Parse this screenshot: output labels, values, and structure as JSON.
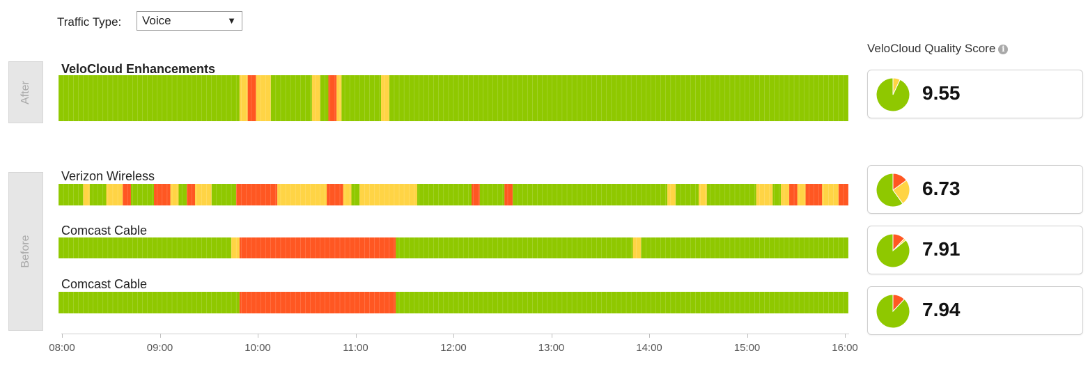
{
  "colors": {
    "good": "#8fc800",
    "fair": "#ffd445",
    "poor": "#ff5722",
    "separator": "#ffffff"
  },
  "toolbar": {
    "traffic_label": "Traffic Type:",
    "traffic_value": "Voice",
    "dropdown_icon": "triangle-down-icon"
  },
  "side_labels": {
    "after": "After",
    "before": "Before"
  },
  "score_header": {
    "label": "VeloCloud Quality Score",
    "icon": "info-icon"
  },
  "time_axis": {
    "start": "08:00",
    "end": "16:00",
    "ticks": [
      "08:00",
      "09:00",
      "10:00",
      "11:00",
      "12:00",
      "13:00",
      "14:00",
      "15:00",
      "16:00"
    ]
  },
  "rows": [
    {
      "name": "VeloCloud Enhancements",
      "group": "After",
      "score": "9.55",
      "pie": {
        "good": 0.93,
        "fair": 0.07,
        "poor": 0.0
      },
      "segments": [
        [
          "08:00",
          "09:50",
          "good"
        ],
        [
          "09:50",
          "09:55",
          "fair"
        ],
        [
          "09:55",
          "10:00",
          "poor"
        ],
        [
          "10:00",
          "10:09",
          "fair"
        ],
        [
          "10:09",
          "10:34",
          "good"
        ],
        [
          "10:34",
          "10:39",
          "fair"
        ],
        [
          "10:39",
          "10:44",
          "good"
        ],
        [
          "10:44",
          "10:49",
          "poor"
        ],
        [
          "10:49",
          "10:52",
          "fair"
        ],
        [
          "10:52",
          "11:16",
          "good"
        ],
        [
          "11:16",
          "11:21",
          "fair"
        ],
        [
          "11:21",
          "16:00",
          "good"
        ]
      ]
    },
    {
      "name": "Verizon Wireless",
      "group": "Before",
      "score": "6.73",
      "pie": {
        "good": 0.6,
        "fair": 0.25,
        "poor": 0.15
      },
      "segments": [
        [
          "08:00",
          "08:15",
          "good"
        ],
        [
          "08:15",
          "08:19",
          "fair"
        ],
        [
          "08:19",
          "08:29",
          "good"
        ],
        [
          "08:29",
          "08:39",
          "fair"
        ],
        [
          "08:39",
          "08:44",
          "poor"
        ],
        [
          "08:44",
          "08:58",
          "good"
        ],
        [
          "08:58",
          "09:08",
          "poor"
        ],
        [
          "09:08",
          "09:13",
          "fair"
        ],
        [
          "09:13",
          "09:18",
          "good"
        ],
        [
          "09:18",
          "09:23",
          "poor"
        ],
        [
          "09:23",
          "09:33",
          "fair"
        ],
        [
          "09:33",
          "09:48",
          "good"
        ],
        [
          "09:48",
          "10:13",
          "poor"
        ],
        [
          "10:13",
          "10:43",
          "fair"
        ],
        [
          "10:43",
          "10:53",
          "poor"
        ],
        [
          "10:53",
          "10:58",
          "fair"
        ],
        [
          "10:58",
          "11:03",
          "good"
        ],
        [
          "11:03",
          "11:38",
          "fair"
        ],
        [
          "11:38",
          "12:11",
          "good"
        ],
        [
          "12:11",
          "12:16",
          "poor"
        ],
        [
          "12:16",
          "12:31",
          "good"
        ],
        [
          "12:31",
          "12:36",
          "poor"
        ],
        [
          "12:36",
          "14:10",
          "good"
        ],
        [
          "14:10",
          "14:15",
          "fair"
        ],
        [
          "14:15",
          "14:29",
          "good"
        ],
        [
          "14:29",
          "14:34",
          "fair"
        ],
        [
          "14:34",
          "15:04",
          "good"
        ],
        [
          "15:04",
          "15:14",
          "fair"
        ],
        [
          "15:14",
          "15:19",
          "good"
        ],
        [
          "15:19",
          "15:24",
          "fair"
        ],
        [
          "15:24",
          "15:29",
          "poor"
        ],
        [
          "15:29",
          "15:34",
          "fair"
        ],
        [
          "15:34",
          "15:44",
          "poor"
        ],
        [
          "15:44",
          "15:54",
          "fair"
        ],
        [
          "15:54",
          "16:00",
          "poor"
        ]
      ]
    },
    {
      "name": "Comcast Cable",
      "group": "Before",
      "score": "7.91",
      "pie": {
        "good": 0.86,
        "fair": 0.02,
        "poor": 0.12
      },
      "segments": [
        [
          "08:00",
          "09:45",
          "good"
        ],
        [
          "09:45",
          "09:50",
          "fair"
        ],
        [
          "09:50",
          "11:25",
          "poor"
        ],
        [
          "11:25",
          "13:49",
          "good"
        ],
        [
          "13:49",
          "13:54",
          "fair"
        ],
        [
          "13:54",
          "16:00",
          "good"
        ]
      ]
    },
    {
      "name": "Comcast Cable",
      "group": "Before",
      "score": "7.94",
      "pie": {
        "good": 0.88,
        "fair": 0.0,
        "poor": 0.12
      },
      "segments": [
        [
          "08:00",
          "09:50",
          "good"
        ],
        [
          "09:50",
          "11:25",
          "poor"
        ],
        [
          "11:25",
          "16:00",
          "good"
        ]
      ]
    }
  ]
}
